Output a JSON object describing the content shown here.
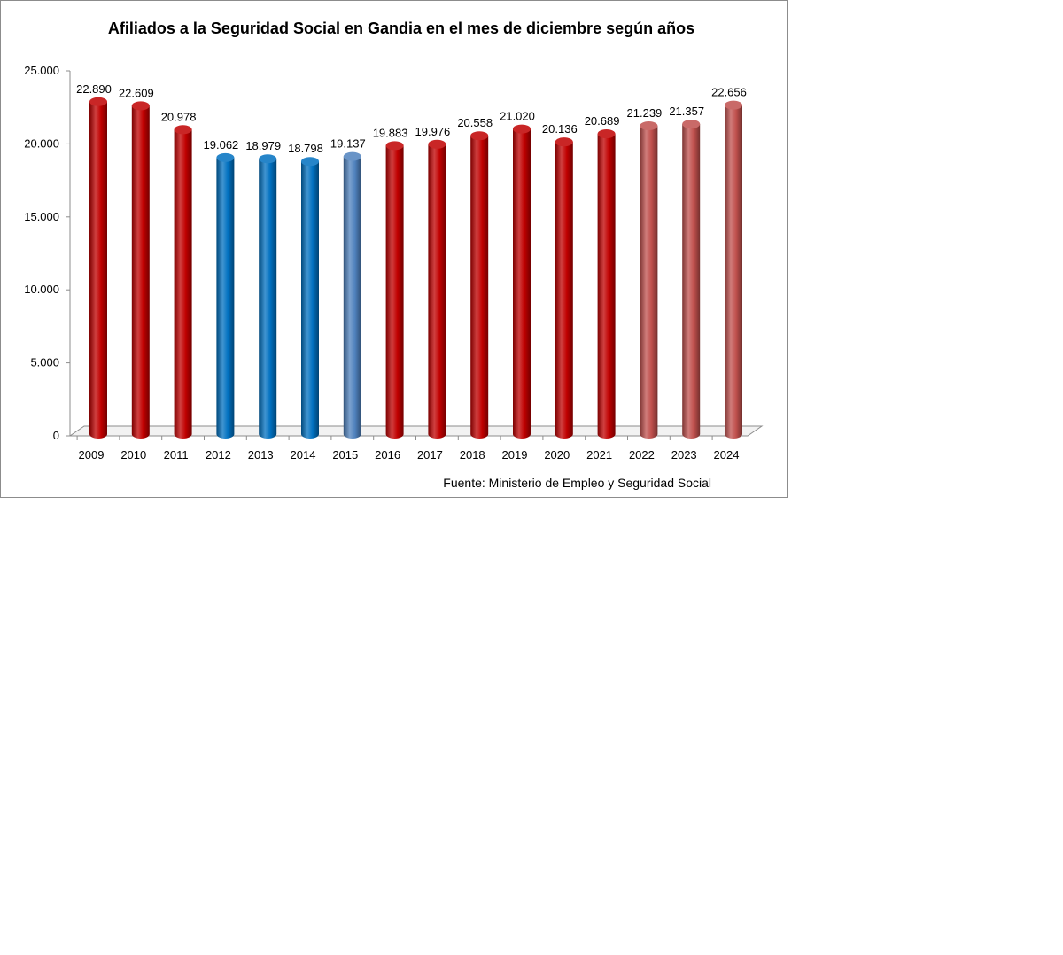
{
  "chart_data": {
    "type": "bar",
    "title": "Afiliados a la Seguridad Social en Gandia en el mes de diciembre según años",
    "xlabel": "",
    "ylabel": "",
    "categories": [
      "2009",
      "2010",
      "2011",
      "2012",
      "2013",
      "2014",
      "2015",
      "2016",
      "2017",
      "2018",
      "2019",
      "2020",
      "2021",
      "2022",
      "2023",
      "2024"
    ],
    "values": [
      22890,
      22609,
      20978,
      19062,
      18979,
      18798,
      19137,
      19883,
      19976,
      20558,
      21020,
      20136,
      20689,
      21239,
      21357,
      22656
    ],
    "value_labels": [
      "22.890",
      "22.609",
      "20.978",
      "19.062",
      "18.979",
      "18.798",
      "19.137",
      "19.883",
      "19.976",
      "20.558",
      "21.020",
      "20.136",
      "20.689",
      "21.239",
      "21.357",
      "22.656"
    ],
    "bar_colors": [
      "#c00000",
      "#c00000",
      "#c00000",
      "#0070c0",
      "#0070c0",
      "#0070c0",
      "#4f81bd",
      "#c00000",
      "#c00000",
      "#c00000",
      "#c00000",
      "#c00000",
      "#c00000",
      "#c0504d",
      "#c0504d",
      "#c0504d"
    ],
    "ylim": [
      0,
      25000
    ],
    "yticks": [
      0,
      5000,
      10000,
      15000,
      20000,
      25000
    ],
    "ytick_labels": [
      "0",
      "5.000",
      "10.000",
      "15.000",
      "20.000",
      "25.000"
    ],
    "grid": false,
    "legend": "none",
    "source": "Fuente: Ministerio de Empleo y Seguridad Social"
  }
}
